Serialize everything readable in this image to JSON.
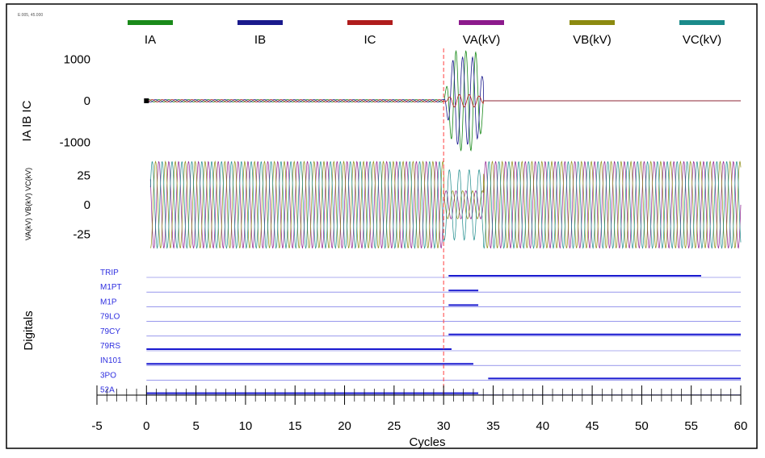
{
  "header_tag": "E:005, 45.000",
  "chart_data": {
    "type": "line",
    "xlabel": "Cycles",
    "xlim": [
      -5,
      60
    ],
    "x_ticks": [
      -5,
      0,
      5,
      10,
      15,
      20,
      25,
      30,
      35,
      40,
      45,
      50,
      55,
      60
    ],
    "trigger_x": 30,
    "legend_position": "top",
    "legend": [
      {
        "name": "IA",
        "color": "#1a8a1a"
      },
      {
        "name": "IB",
        "color": "#1a1a8c"
      },
      {
        "name": "IC",
        "color": "#b01c1c"
      },
      {
        "name": "VA(kV)",
        "color": "#8c1a8c"
      },
      {
        "name": "VB(kV)",
        "color": "#8c8a10"
      },
      {
        "name": "VC(kV)",
        "color": "#1a8a8a"
      }
    ],
    "panels": [
      {
        "id": "currents",
        "ylabel": "IA IB IC",
        "ylim": [
          -1300,
          1300
        ],
        "y_ticks": [
          1000,
          0,
          -1000
        ],
        "series": [
          {
            "name": "IA",
            "color": "#1a8a1a",
            "pre_fault_amplitude": 30,
            "fault_amplitude": 1200,
            "fault_start": 30.0,
            "fault_end": 34.0,
            "waveform_start": 0
          },
          {
            "name": "IB",
            "color": "#1a1a8c",
            "pre_fault_amplitude": 30,
            "fault_amplitude": 1050,
            "fault_start": 30.0,
            "fault_end": 34.0,
            "waveform_start": 0
          },
          {
            "name": "IC",
            "color": "#b01c1c",
            "pre_fault_amplitude": 30,
            "fault_amplitude": 150,
            "fault_start": 30.0,
            "fault_end": 34.0,
            "waveform_start": 0
          }
        ]
      },
      {
        "id": "voltages",
        "ylabel": "VA(kV) VB(kV) VC(kV)",
        "ylim": [
          -42,
          42
        ],
        "y_ticks": [
          25,
          0,
          -25
        ],
        "series": [
          {
            "name": "VA(kV)",
            "color": "#8c1a8c",
            "amplitude": 37,
            "fault_amplitude": 12,
            "fault_start": 30.0,
            "fault_end": 34.0,
            "waveform_start": 0
          },
          {
            "name": "VB(kV)",
            "color": "#8c8a10",
            "amplitude": 37,
            "fault_amplitude": 12,
            "fault_start": 30.0,
            "fault_end": 34.0,
            "waveform_start": 0
          },
          {
            "name": "VC(kV)",
            "color": "#1a8a8a",
            "amplitude": 37,
            "fault_amplitude": 30,
            "fault_start": 30.0,
            "fault_end": 34.0,
            "waveform_start": 0
          }
        ]
      },
      {
        "id": "digitals",
        "ylabel": "Digitals",
        "channels": [
          {
            "name": "TRIP",
            "asserted": [
              [
                30.5,
                56
              ]
            ]
          },
          {
            "name": "M1PT",
            "asserted": [
              [
                30.5,
                33.5
              ]
            ]
          },
          {
            "name": "M1P",
            "asserted": [
              [
                30.5,
                33.5
              ]
            ]
          },
          {
            "name": "79LO",
            "asserted": []
          },
          {
            "name": "79CY",
            "asserted": [
              [
                30.5,
                60
              ]
            ]
          },
          {
            "name": "79RS",
            "asserted": [
              [
                0,
                30.8
              ]
            ]
          },
          {
            "name": "IN101",
            "asserted": [
              [
                0,
                33
              ]
            ]
          },
          {
            "name": "3PO",
            "asserted": [
              [
                34.5,
                60
              ]
            ]
          },
          {
            "name": "52A",
            "asserted": [
              [
                0,
                33.5
              ]
            ]
          }
        ]
      }
    ]
  }
}
